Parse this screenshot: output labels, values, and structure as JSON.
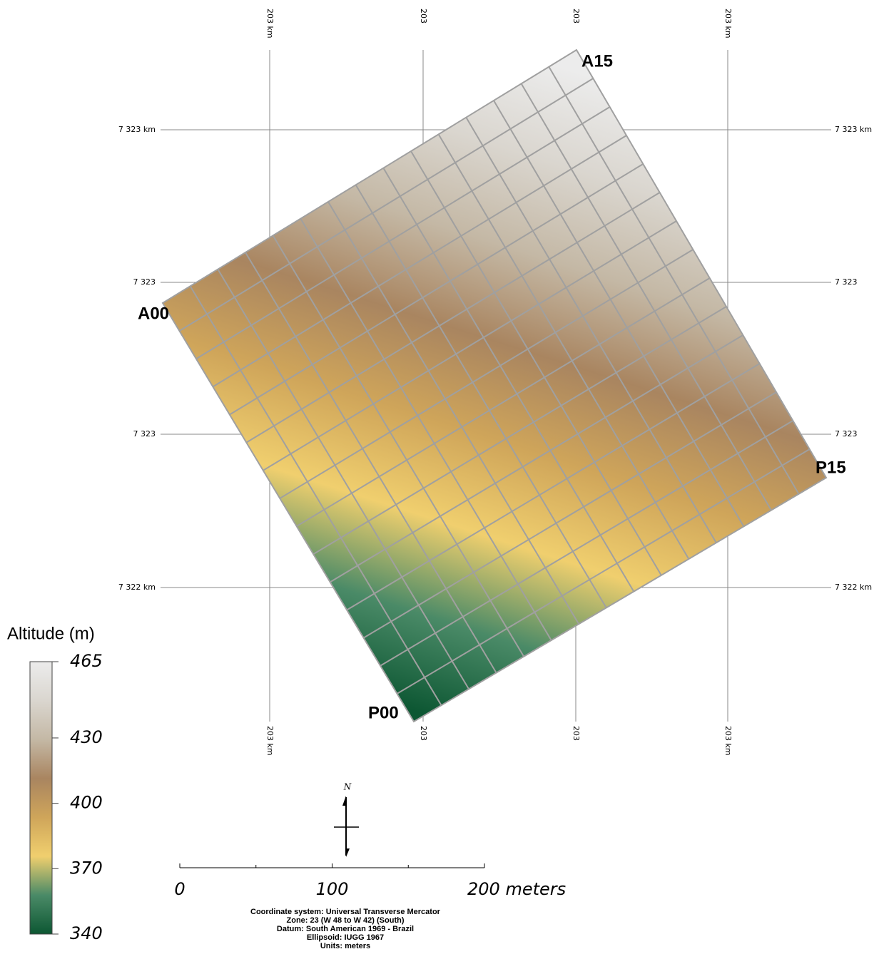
{
  "grid": {
    "top_labels": [
      "203 km",
      "203",
      "203",
      "203 km"
    ],
    "bottom_labels": [
      "203 km",
      "203",
      "203",
      "203 km"
    ],
    "left_labels": [
      "7 323 km",
      "7 323",
      "7 323",
      "7 322 km"
    ],
    "right_labels": [
      "7 323 km",
      "7 323",
      "7 323",
      "7 322 km"
    ]
  },
  "corner_labels": [
    "A15",
    "A00",
    "P15",
    "P00"
  ],
  "legend": {
    "title": "Altitude (m)",
    "range": [
      340,
      465
    ],
    "ticks": [
      465,
      430,
      400,
      370,
      340
    ],
    "colors": [
      "#0d5733",
      "#4a8a67",
      "#f0cf6e",
      "#cfa55a",
      "#a98560",
      "#c4b8a5",
      "#dad6cf",
      "#ececec"
    ]
  },
  "scale_bar": {
    "range": [
      0,
      200
    ],
    "ticks": [
      0,
      100,
      {
        "value": 200,
        "label": "200 meters"
      }
    ],
    "minor_ticks": [
      50,
      150
    ]
  },
  "north": "N",
  "info": [
    "Coordinate system:  Universal Transverse Mercator",
    "Zone:  23 (W 48 to W 42) (South)",
    "Datum:  South American 1969 - Brazil",
    "Ellipsoid:  IUGG 1967",
    "Units:  meters"
  ]
}
